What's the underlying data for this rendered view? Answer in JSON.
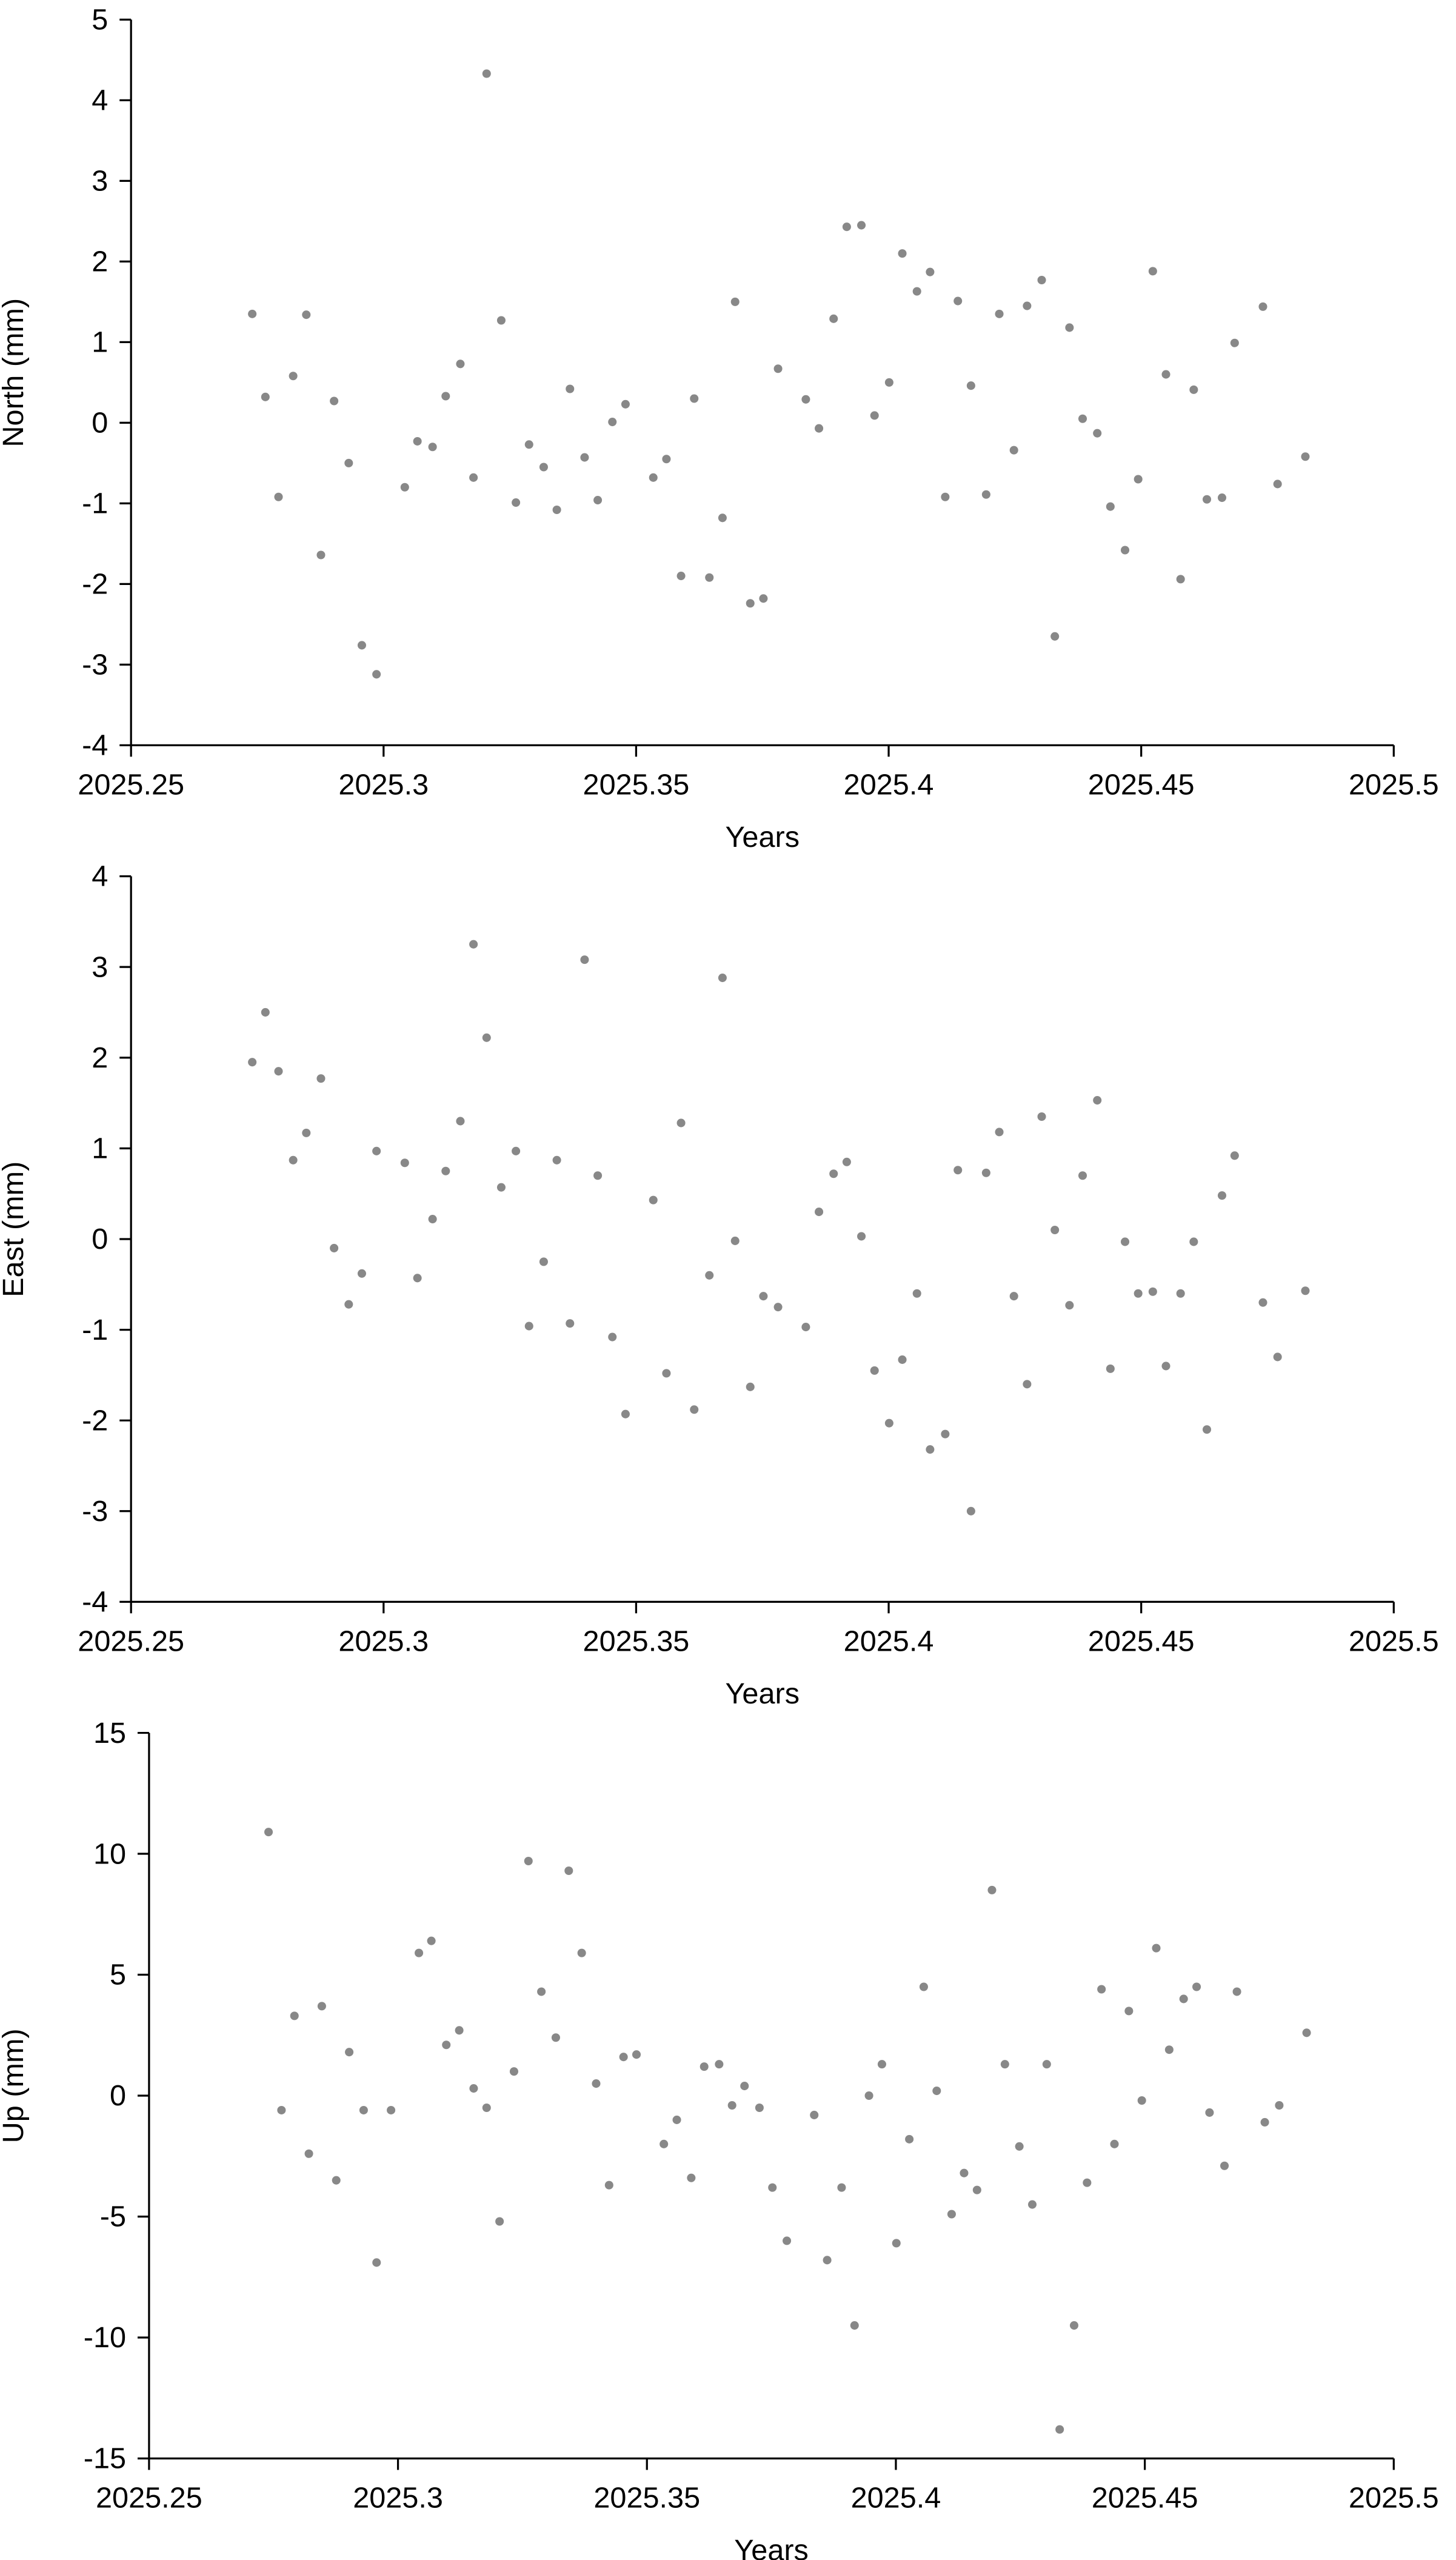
{
  "chart_data": [
    {
      "type": "scatter",
      "ylabel": "North (mm)",
      "xlabel": "Years",
      "color": "#888888",
      "xlim": [
        2025.25,
        2025.5
      ],
      "xticks": [
        2025.25,
        2025.3,
        2025.35,
        2025.4,
        2025.45,
        2025.5
      ],
      "ylim": [
        -4,
        5
      ],
      "yticks": [
        -4,
        -3,
        -2,
        -1,
        0,
        1,
        2,
        3,
        4,
        5
      ],
      "x": [
        2025.274,
        2025.2766,
        2025.2792,
        2025.2821,
        2025.2847,
        2025.2876,
        2025.2902,
        2025.2931,
        2025.2957,
        2025.2986,
        2025.3042,
        2025.3067,
        2025.3097,
        2025.3123,
        2025.3152,
        2025.3178,
        2025.3204,
        2025.3233,
        2025.3262,
        2025.3288,
        2025.3317,
        2025.3343,
        2025.3369,
        2025.3398,
        2025.3424,
        2025.3453,
        2025.3479,
        2025.3534,
        2025.356,
        2025.3589,
        2025.3615,
        2025.3645,
        2025.3671,
        2025.3696,
        2025.3726,
        2025.3752,
        2025.3781,
        2025.3836,
        2025.3862,
        2025.3891,
        2025.3917,
        2025.3946,
        2025.3972,
        2025.4001,
        2025.4027,
        2025.4056,
        2025.4082,
        2025.4112,
        2025.4137,
        2025.4163,
        2025.4193,
        2025.4219,
        2025.4248,
        2025.4274,
        2025.4303,
        2025.4329,
        2025.4358,
        2025.4384,
        2025.4413,
        2025.4439,
        2025.4468,
        2025.4494,
        2025.4523,
        2025.4549,
        2025.4578,
        2025.4604,
        2025.463,
        2025.466,
        2025.4685,
        2025.4741,
        2025.477,
        2025.4825
      ],
      "values": [
        1.35,
        0.32,
        -0.92,
        0.58,
        1.34,
        -1.64,
        0.27,
        -0.5,
        -2.76,
        -3.12,
        -0.8,
        -0.23,
        -0.3,
        0.33,
        0.73,
        -0.68,
        4.33,
        1.27,
        -0.99,
        -0.27,
        -0.55,
        -1.08,
        0.42,
        -0.43,
        -0.96,
        0.01,
        0.23,
        -0.68,
        -0.45,
        -1.9,
        0.3,
        -1.92,
        -1.18,
        1.5,
        -2.24,
        -2.18,
        0.67,
        0.29,
        -0.07,
        1.29,
        2.43,
        2.45,
        0.09,
        0.5,
        2.1,
        1.63,
        1.87,
        -0.92,
        1.51,
        0.46,
        -0.89,
        1.35,
        -0.34,
        1.45,
        1.77,
        -2.65,
        1.18,
        0.05,
        -0.13,
        -1.04,
        -1.58,
        -0.7,
        1.88,
        0.6,
        -1.94,
        0.41,
        -0.95,
        -0.93,
        0.99,
        1.44,
        -0.76,
        -0.42
      ]
    },
    {
      "type": "scatter",
      "ylabel": "East (mm)",
      "xlabel": "Years",
      "color": "#888888",
      "xlim": [
        2025.25,
        2025.5
      ],
      "xticks": [
        2025.25,
        2025.3,
        2025.35,
        2025.4,
        2025.45,
        2025.5
      ],
      "ylim": [
        -4,
        4
      ],
      "yticks": [
        -4,
        -3,
        -2,
        -1,
        0,
        1,
        2,
        3,
        4
      ],
      "x": [
        2025.274,
        2025.2766,
        2025.2792,
        2025.2821,
        2025.2847,
        2025.2876,
        2025.2902,
        2025.2931,
        2025.2957,
        2025.2986,
        2025.3042,
        2025.3067,
        2025.3097,
        2025.3123,
        2025.3152,
        2025.3178,
        2025.3204,
        2025.3233,
        2025.3262,
        2025.3288,
        2025.3317,
        2025.3343,
        2025.3369,
        2025.3398,
        2025.3424,
        2025.3453,
        2025.3479,
        2025.3534,
        2025.356,
        2025.3589,
        2025.3615,
        2025.3645,
        2025.3671,
        2025.3696,
        2025.3726,
        2025.3752,
        2025.3781,
        2025.3836,
        2025.3862,
        2025.3891,
        2025.3917,
        2025.3946,
        2025.3972,
        2025.4001,
        2025.4027,
        2025.4056,
        2025.4082,
        2025.4112,
        2025.4137,
        2025.4163,
        2025.4193,
        2025.4219,
        2025.4248,
        2025.4274,
        2025.4303,
        2025.4329,
        2025.4358,
        2025.4384,
        2025.4413,
        2025.4439,
        2025.4468,
        2025.4494,
        2025.4523,
        2025.4549,
        2025.4578,
        2025.4604,
        2025.463,
        2025.466,
        2025.4685,
        2025.4741,
        2025.477,
        2025.4825
      ],
      "values": [
        1.95,
        2.5,
        1.85,
        0.87,
        1.17,
        1.77,
        -0.1,
        -0.72,
        -0.38,
        0.97,
        0.84,
        -0.43,
        0.22,
        0.75,
        1.3,
        3.25,
        2.22,
        0.57,
        0.97,
        -0.96,
        -0.25,
        0.87,
        -0.93,
        3.08,
        0.7,
        -1.08,
        -1.93,
        0.43,
        -1.48,
        1.28,
        -1.88,
        -0.4,
        2.88,
        -0.02,
        -1.63,
        -0.63,
        -0.75,
        -0.97,
        0.3,
        0.72,
        0.85,
        0.03,
        -1.45,
        -2.03,
        -1.33,
        -0.6,
        -2.32,
        -2.15,
        0.76,
        -3.0,
        0.73,
        1.18,
        -0.63,
        -1.6,
        1.35,
        0.1,
        -0.73,
        0.7,
        1.53,
        -1.43,
        -0.03,
        -0.6,
        -0.58,
        -1.4,
        -0.6,
        -0.03,
        -2.1,
        0.48,
        0.92,
        -0.7,
        -1.3,
        -0.57
      ]
    },
    {
      "type": "scatter",
      "ylabel": "Up (mm)",
      "xlabel": "Years",
      "color": "#888888",
      "xlim": [
        2025.25,
        2025.5
      ],
      "xticks": [
        2025.25,
        2025.3,
        2025.35,
        2025.4,
        2025.45,
        2025.5
      ],
      "ylim": [
        -15,
        15
      ],
      "yticks": [
        -15,
        -10,
        -5,
        0,
        5,
        10,
        15
      ],
      "x": [
        2025.274,
        2025.2766,
        2025.2792,
        2025.2821,
        2025.2847,
        2025.2876,
        2025.2902,
        2025.2931,
        2025.2957,
        2025.2986,
        2025.3042,
        2025.3067,
        2025.3097,
        2025.3123,
        2025.3152,
        2025.3178,
        2025.3204,
        2025.3233,
        2025.3262,
        2025.3288,
        2025.3317,
        2025.3343,
        2025.3369,
        2025.3398,
        2025.3424,
        2025.3453,
        2025.3479,
        2025.3534,
        2025.356,
        2025.3589,
        2025.3615,
        2025.3645,
        2025.3671,
        2025.3696,
        2025.3726,
        2025.3752,
        2025.3781,
        2025.3836,
        2025.3862,
        2025.3891,
        2025.3917,
        2025.3946,
        2025.3972,
        2025.4001,
        2025.4027,
        2025.4056,
        2025.4082,
        2025.4112,
        2025.4137,
        2025.4163,
        2025.4193,
        2025.4219,
        2025.4248,
        2025.4274,
        2025.4303,
        2025.4329,
        2025.4358,
        2025.4384,
        2025.4413,
        2025.4439,
        2025.4468,
        2025.4494,
        2025.4523,
        2025.4549,
        2025.4578,
        2025.4604,
        2025.463,
        2025.466,
        2025.4685,
        2025.4741,
        2025.477,
        2025.4825
      ],
      "values": [
        10.9,
        -0.6,
        3.3,
        -2.4,
        3.7,
        -3.5,
        1.8,
        -0.6,
        -6.9,
        -0.6,
        5.9,
        6.4,
        2.1,
        2.7,
        0.3,
        -0.5,
        -5.2,
        1.0,
        9.7,
        4.3,
        2.4,
        9.3,
        5.9,
        0.5,
        -3.7,
        1.6,
        1.7,
        -2.0,
        -1.0,
        -3.4,
        1.2,
        1.3,
        -0.4,
        0.4,
        -0.5,
        -3.8,
        -6.0,
        -0.8,
        -6.8,
        -3.8,
        -9.5,
        0.0,
        1.3,
        -6.1,
        -1.8,
        4.5,
        0.2,
        -4.9,
        -3.2,
        -3.9,
        8.5,
        1.3,
        -2.1,
        -4.5,
        1.3,
        -13.8,
        -9.5,
        -3.6,
        4.4,
        -2.0,
        3.5,
        -0.2,
        6.1,
        1.9,
        4.0,
        4.5,
        -0.7,
        -2.9,
        4.3,
        -1.1,
        -0.4,
        2.6
      ]
    }
  ]
}
